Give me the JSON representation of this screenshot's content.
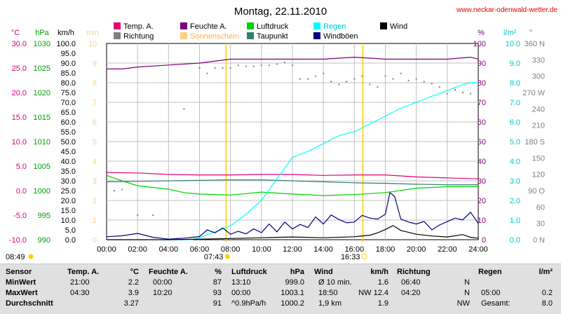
{
  "header": {
    "title": "Montag, 22.11.2010",
    "site": "www.neckar-odenwald-wetter.de"
  },
  "legend": [
    {
      "label": "Temp. A.",
      "color": "#e0007a"
    },
    {
      "label": "Feuchte A.",
      "color": "#7a007a"
    },
    {
      "label": "Luftdruck",
      "color": "#00d000"
    },
    {
      "label": "Regen",
      "color": "#00ffff"
    },
    {
      "label": "Wind",
      "color": "#000000"
    },
    {
      "label": "Richtung",
      "color": "#808080"
    },
    {
      "label": "Sonnenschein",
      "color": "#ffd080"
    },
    {
      "label": "Taupunkt",
      "color": "#2e8070"
    },
    {
      "label": "Windböen",
      "color": "#000080"
    }
  ],
  "axes": {
    "temp": {
      "unit": "°C",
      "color": "#e0007a",
      "ticks": [
        "30.0",
        "25.0",
        "20.0",
        "15.0",
        "10.0",
        "5.0",
        "0.0",
        "-5.0",
        "-10.0"
      ]
    },
    "pressure": {
      "unit": "hPa",
      "color": "#00a000",
      "ticks": [
        "1030",
        "1025",
        "1020",
        "1015",
        "1010",
        "1005",
        "1000",
        "995",
        "990"
      ]
    },
    "wind": {
      "unit": "km/h",
      "color": "#000000",
      "ticks": [
        "100.0",
        "95.0",
        "90.0",
        "85.0",
        "80.0",
        "75.0",
        "70.0",
        "65.0",
        "60.0",
        "55.0",
        "50.0",
        "45.0",
        "40.0",
        "35.0",
        "30.0",
        "25.0",
        "20.0",
        "15.0",
        "10.0",
        "5.0",
        "0.0"
      ]
    },
    "sun": {
      "unit": "min",
      "color": "#ffd080",
      "ticks": [
        "10",
        "9",
        "8",
        "7",
        "6",
        "5",
        "4",
        "3",
        "2",
        "1",
        "0"
      ]
    },
    "humidity": {
      "unit": "%",
      "color": "#7a007a",
      "ticks": [
        "100",
        "90",
        "80",
        "70",
        "60",
        "50",
        "40",
        "30",
        "20",
        "10",
        "0"
      ]
    },
    "rain": {
      "unit": "l/m²",
      "color": "#00c8c8",
      "ticks": [
        "10.0",
        "9.0",
        "8.0",
        "7.0",
        "6.0",
        "5.0",
        "4.0",
        "3.0",
        "2.0",
        "1.0",
        "0.0"
      ]
    },
    "direction": {
      "unit": "°",
      "color": "#808080",
      "ticks": [
        "360 N",
        "330",
        "300",
        "270 W",
        "240",
        "210",
        "180 S",
        "150",
        "120",
        "90 O",
        "60",
        "30",
        "0 N"
      ]
    },
    "time": {
      "ticks": [
        "00:00",
        "02:00",
        "04:00",
        "06:00",
        "08:00",
        "10:00",
        "12:00",
        "14:00",
        "16:00",
        "18:00",
        "20:00",
        "22:00",
        "24:00"
      ]
    }
  },
  "sun_events": {
    "sunrise": "07:43",
    "sunset": "16:33",
    "sunshine_hours": "08:49"
  },
  "chart_data": {
    "type": "line",
    "title": "Montag, 22.11.2010",
    "x_unit": "hours",
    "xlim": [
      0,
      24
    ],
    "series": [
      {
        "name": "Temp. A.",
        "unit": "°C",
        "color": "#e0007a",
        "x": [
          0,
          2,
          4,
          6,
          8,
          10,
          12,
          13,
          14,
          16,
          18,
          19,
          20,
          22,
          24
        ],
        "values": [
          3.7,
          3.6,
          3.3,
          3.2,
          3.2,
          3.3,
          3.3,
          3.2,
          3.1,
          3.2,
          3.2,
          3.0,
          2.8,
          2.6,
          2.4
        ]
      },
      {
        "name": "Feuchte A.",
        "unit": "%",
        "color": "#7a007a",
        "x": [
          0,
          1,
          2,
          4,
          6,
          8,
          10,
          12,
          14,
          16,
          18,
          20,
          22,
          23.5,
          24
        ],
        "values": [
          87,
          87,
          88,
          89,
          90,
          92,
          92,
          92,
          92,
          93,
          92,
          92,
          92,
          93,
          92
        ]
      },
      {
        "name": "Luftdruck",
        "unit": "hPa",
        "color": "#00d000",
        "x": [
          0,
          1,
          2,
          4,
          5,
          6,
          8,
          10,
          12,
          14,
          16,
          18,
          20,
          22,
          24
        ],
        "values": [
          1003.1,
          1002.0,
          1001.0,
          1000.3,
          999.6,
          999.3,
          999.1,
          999.7,
          999.3,
          999.0,
          999.2,
          999.6,
          1000.5,
          1000.8,
          1000.8
        ]
      },
      {
        "name": "Taupunkt",
        "unit": "°C",
        "color": "#2e8070",
        "x": [
          0,
          2,
          4,
          6,
          8,
          10,
          12,
          14,
          16,
          18,
          20,
          22,
          24
        ],
        "values": [
          1.8,
          1.9,
          2.0,
          2.1,
          2.2,
          2.2,
          2.0,
          1.8,
          1.6,
          1.5,
          1.3,
          1.2,
          1.2
        ]
      },
      {
        "name": "Regen",
        "unit": "l/m²",
        "color": "#00ffff",
        "x": [
          0,
          5.5,
          6,
          8,
          9,
          10,
          11,
          12,
          13,
          14,
          15,
          16,
          17,
          18,
          19,
          20,
          21,
          22,
          23,
          23.5,
          24
        ],
        "values": [
          0,
          0,
          0.1,
          0.7,
          1.3,
          2.0,
          3.1,
          4.2,
          4.5,
          4.9,
          5.3,
          5.5,
          5.9,
          6.3,
          6.7,
          7.0,
          7.3,
          7.6,
          7.9,
          8.0,
          8.0
        ]
      },
      {
        "name": "Wind",
        "unit": "km/h",
        "color": "#000000",
        "x": [
          0,
          4,
          6,
          8,
          10,
          12,
          14,
          16,
          17,
          17.5,
          18,
          18.5,
          19,
          20,
          21,
          22,
          23,
          23.5,
          24
        ],
        "values": [
          0,
          0,
          0.3,
          0.6,
          1.0,
          1.4,
          1.0,
          1.5,
          2.3,
          3.5,
          5.2,
          7.2,
          4.7,
          2.8,
          1.9,
          1.4,
          2.6,
          1.2,
          0.8
        ]
      },
      {
        "name": "Windböen",
        "unit": "km/h",
        "color": "#000080",
        "x": [
          0,
          1,
          2,
          3,
          4,
          5,
          6,
          6.5,
          7,
          7.5,
          8,
          8.5,
          9,
          9.5,
          10,
          10.5,
          11,
          11.5,
          12,
          12.5,
          13,
          13.5,
          14,
          14.5,
          15,
          15.5,
          16,
          16.5,
          17,
          17.5,
          18,
          18.3,
          18.6,
          19,
          19.5,
          20,
          20.5,
          21,
          21.5,
          22,
          22.5,
          23,
          23.5,
          24
        ],
        "values": [
          1.5,
          2.0,
          3.2,
          1.2,
          0.3,
          0.8,
          1.6,
          5.0,
          3.5,
          6.0,
          2.8,
          4.3,
          3.0,
          5.5,
          3.6,
          8.0,
          4.0,
          9.0,
          5.5,
          7.8,
          6.2,
          11.6,
          8.0,
          12.6,
          10.3,
          8.6,
          9.0,
          12.4,
          11.0,
          10.5,
          13.0,
          24.0,
          22.0,
          10.5,
          9.0,
          8.0,
          9.3,
          5.0,
          7.5,
          9.2,
          11.0,
          10.1,
          14.0,
          8.3
        ]
      },
      {
        "name": "Richtung",
        "unit": "°",
        "color": "#808080",
        "marker": "dots",
        "x": [
          0,
          0.5,
          1,
          2,
          3,
          5,
          6,
          6.5,
          7,
          7.5,
          8,
          8.5,
          9,
          9.5,
          10,
          10.5,
          11,
          11.5,
          12,
          12.5,
          13,
          13.5,
          14,
          14.5,
          15,
          15.5,
          16,
          16.5,
          17,
          17.5,
          18,
          18.5,
          19,
          19.5,
          20,
          20.5,
          21,
          21.5,
          22,
          22.5,
          23,
          23.5,
          24
        ],
        "values": [
          92,
          90,
          92,
          45,
          45,
          240,
          315,
          305,
          315,
          315,
          315,
          320,
          318,
          318,
          320,
          320,
          322,
          325,
          320,
          295,
          295,
          300,
          305,
          290,
          285,
          290,
          295,
          300,
          285,
          280,
          300,
          295,
          305,
          292,
          295,
          290,
          286,
          280,
          268,
          275,
          270,
          268,
          270
        ]
      },
      {
        "name": "Sonnenschein",
        "unit": "min",
        "color": "#ffd080",
        "values": []
      }
    ]
  },
  "table": {
    "headers": {
      "sensor": "Sensor",
      "temp": "Temp. A.",
      "temp_unit": "°C",
      "hum": "Feuchte A.",
      "hum_unit": "%",
      "press": "Luftdruck",
      "press_unit": "hPa",
      "wind": "Wind",
      "wind_unit": "km/h",
      "dir": "Richtung",
      "rain": "Regen",
      "rain_unit": "l/m²"
    },
    "rows": [
      {
        "label": "MinWert",
        "temp_time": "21:00",
        "temp_val": "2.2",
        "hum_time": "00:00",
        "hum_val": "87",
        "press_time": "13:10",
        "press_val": "999.0",
        "wind_time": "Ø 10 min.",
        "wind_val": "1.6",
        "dir_time": "06:40",
        "dir_val": "N",
        "rain_time": "",
        "rain_val": ""
      },
      {
        "label": "MaxWert",
        "temp_time": "04:30",
        "temp_val": "3.9",
        "hum_time": "10:20",
        "hum_val": "93",
        "press_time": "00:00",
        "press_val": "1003.1",
        "wind_time": "18:50",
        "wind_val": "NW 12.4",
        "dir_time": "04:20",
        "dir_val": "N",
        "rain_time": "05:00",
        "rain_val": "0.2"
      },
      {
        "label": "Durchschnitt",
        "temp_time": "",
        "temp_val": "3.27",
        "hum_time": "",
        "hum_val": "91",
        "press_time": "^0.9hPa/h",
        "press_val": "1000.2",
        "wind_time": "1,9 km",
        "wind_val": "1.9",
        "dir_time": "",
        "dir_val": "NW",
        "rain_time": "Gesamt:",
        "rain_val": "8.0"
      }
    ]
  }
}
